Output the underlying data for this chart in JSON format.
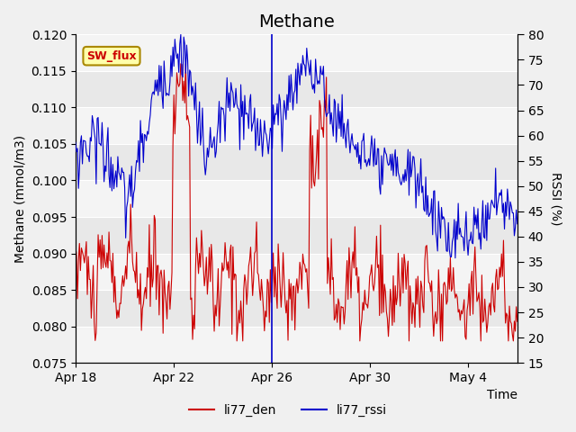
{
  "title": "Methane",
  "xlabel": "Time",
  "ylabel_left": "Methane (mmol/m3)",
  "ylabel_right": "RSSI (%)",
  "ylim_left": [
    0.075,
    0.12
  ],
  "ylim_right": [
    15,
    80
  ],
  "yticks_left": [
    0.075,
    0.08,
    0.085,
    0.09,
    0.095,
    0.1,
    0.105,
    0.11,
    0.115,
    0.12
  ],
  "yticks_right": [
    15,
    20,
    25,
    30,
    35,
    40,
    45,
    50,
    55,
    60,
    65,
    70,
    75,
    80
  ],
  "xtick_labels": [
    "Apr 18",
    "Apr 22",
    "Apr 26",
    "Apr 30",
    "May 4"
  ],
  "xtick_positions": [
    0,
    4,
    8,
    12,
    16
  ],
  "color_red": "#cc0000",
  "color_blue": "#0000cc",
  "legend_labels": [
    "li77_den",
    "li77_rssi"
  ],
  "sw_flux_box_color": "#ffffaa",
  "sw_flux_border_color": "#aa8800",
  "plot_bg_color": "#e8e8e8",
  "title_fontsize": 14,
  "label_fontsize": 10
}
